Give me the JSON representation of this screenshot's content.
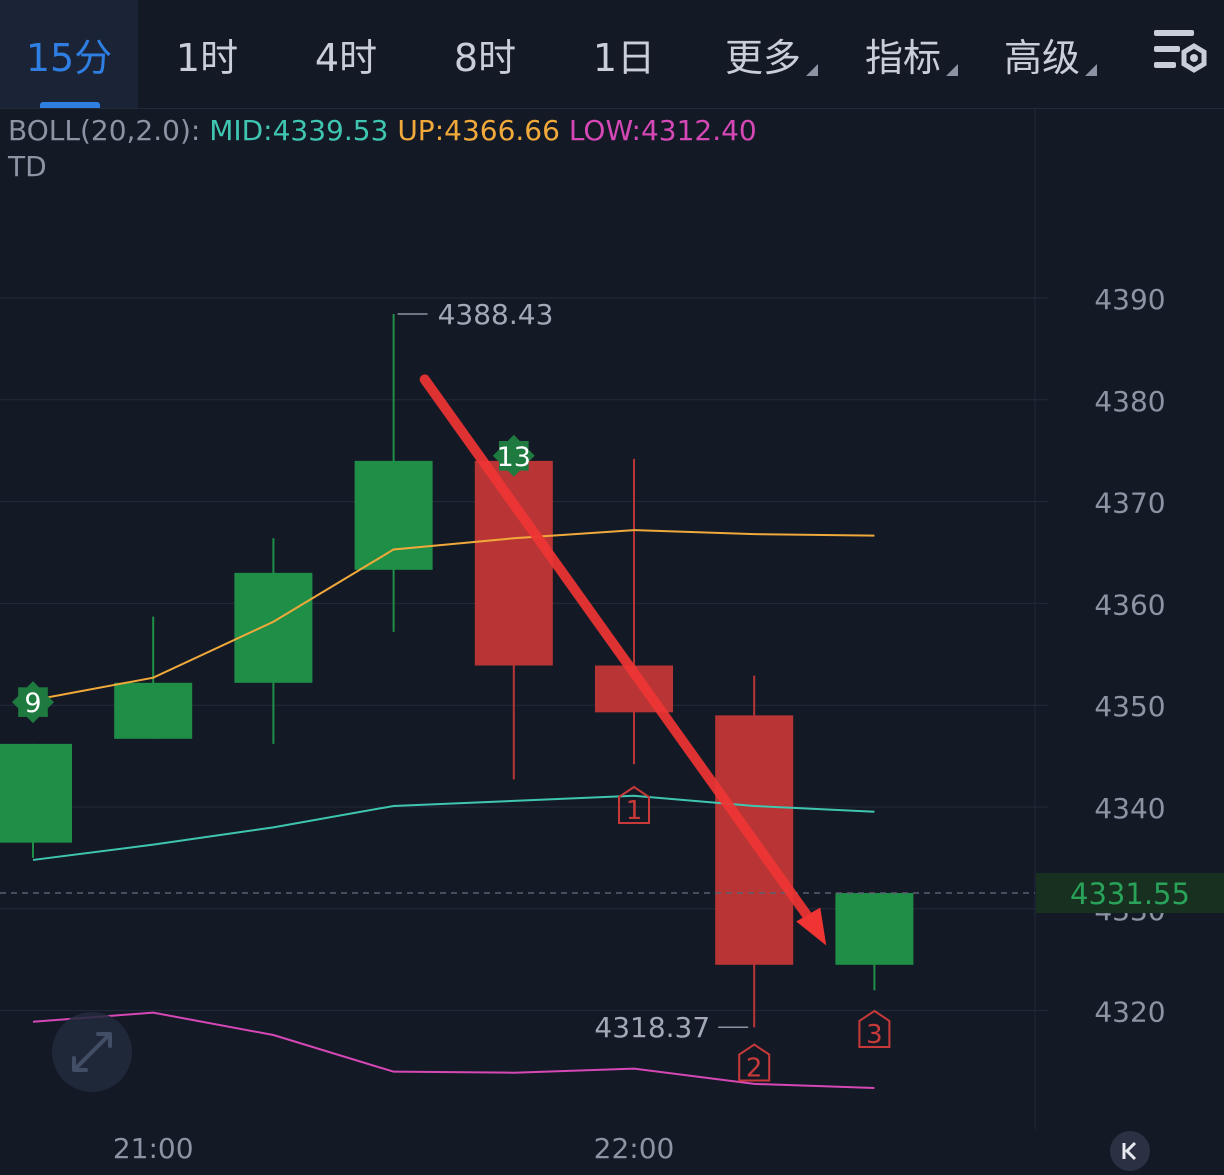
{
  "tabs": [
    {
      "label": "15分",
      "active": true,
      "dropdown": false
    },
    {
      "label": "1时",
      "active": false,
      "dropdown": false
    },
    {
      "label": "4时",
      "active": false,
      "dropdown": false
    },
    {
      "label": "8时",
      "active": false,
      "dropdown": false
    },
    {
      "label": "1日",
      "active": false,
      "dropdown": false
    },
    {
      "label": "更多",
      "active": false,
      "dropdown": true
    },
    {
      "label": "指标",
      "active": false,
      "dropdown": true
    },
    {
      "label": "高级",
      "active": false,
      "dropdown": true
    }
  ],
  "settings_icon": "settings-sliders-icon",
  "legend": {
    "boll_label": "BOLL(20,2.0):",
    "mid": "MID:4339.53",
    "up": "UP:4366.66",
    "low": "LOW:4312.40",
    "td_label": "TD"
  },
  "colors": {
    "up_candle": "#1f8f48",
    "down_candle": "#b93535",
    "mid_line": "#3ec6b0",
    "upper_band": "#f0a93a",
    "lower_band": "#d548b6",
    "active_tab": "#2f7fe3",
    "arrow": "#f03434",
    "background": "#141926"
  },
  "chart_data": {
    "type": "candlestick",
    "interval": "15分",
    "y_axis": {
      "ticks": [
        "4390",
        "4380",
        "4370",
        "4360",
        "4350",
        "4340",
        "4330",
        "4320"
      ],
      "ylim": [
        4305,
        4405
      ]
    },
    "x_axis": {
      "ticks": [
        "21:00",
        "22:00"
      ]
    },
    "candles": [
      {
        "open": 4336.5,
        "high": 4346.2,
        "low": 4335.0,
        "close": 4346.2,
        "direction": "up"
      },
      {
        "open": 4346.7,
        "high": 4358.7,
        "low": 4346.7,
        "close": 4352.2,
        "direction": "up"
      },
      {
        "open": 4352.2,
        "high": 4366.4,
        "low": 4346.2,
        "close": 4363.0,
        "direction": "up"
      },
      {
        "open": 4363.3,
        "high": 4388.43,
        "low": 4357.2,
        "close": 4374.0,
        "direction": "up"
      },
      {
        "open": 4374.0,
        "high": 4375.2,
        "low": 4342.7,
        "close": 4353.9,
        "direction": "down"
      },
      {
        "open": 4353.9,
        "high": 4374.2,
        "low": 4344.2,
        "close": 4349.3,
        "direction": "down"
      },
      {
        "open": 4349.0,
        "high": 4352.9,
        "low": 4318.37,
        "close": 4324.5,
        "direction": "down"
      },
      {
        "open": 4324.5,
        "high": 4331.55,
        "low": 4322.0,
        "close": 4331.55,
        "direction": "up"
      }
    ],
    "bollinger": {
      "upper": [
        4350.5,
        4352.7,
        4358.2,
        4365.3,
        4366.4,
        4367.2,
        4366.8,
        4366.66
      ],
      "mid": [
        4334.8,
        4336.3,
        4338.0,
        4340.1,
        4340.6,
        4341.1,
        4340.1,
        4339.53
      ],
      "lower": [
        4318.9,
        4319.8,
        4317.6,
        4314.0,
        4313.9,
        4314.3,
        4312.8,
        4312.4
      ]
    },
    "annotations": {
      "high_label": "4388.43",
      "low_label": "4318.37",
      "last_price": "4331.55",
      "td_markers": [
        {
          "label": "9",
          "candle": 0,
          "kind": "buy-setup"
        },
        {
          "label": "13",
          "candle": 4,
          "kind": "countdown"
        },
        {
          "label": "1",
          "candle": 5,
          "kind": "sell-setup"
        },
        {
          "label": "2",
          "candle": 6,
          "kind": "sell-setup"
        },
        {
          "label": "3",
          "candle": 7,
          "kind": "sell-setup"
        }
      ],
      "trend_arrow": {
        "from_candle": 3.5,
        "from_value": 4382,
        "to_candle": 6.3,
        "to_value": 4326
      }
    }
  }
}
